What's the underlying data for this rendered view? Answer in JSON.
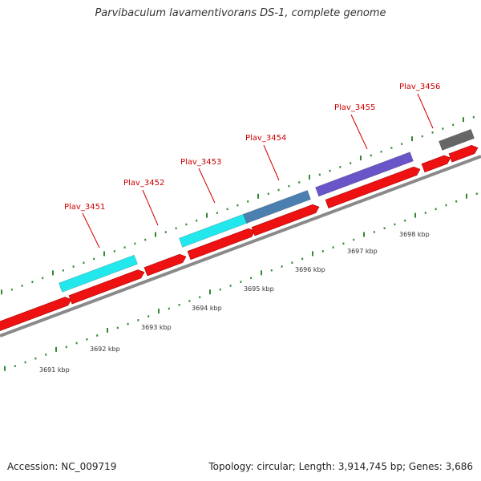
{
  "title": "Parvibaculum lavamentivorans DS-1, complete genome",
  "footer": {
    "accession": "Accession: NC_009719",
    "summary": "Topology: circular; Length: 3,914,745 bp; Genes: 3,686"
  },
  "colors": {
    "cds": "#ee1111",
    "backbone": "#888888",
    "tick": "#338833",
    "label": "#cc0000"
  },
  "kbp_labels": [
    "3691 kbp",
    "3692 kbp",
    "3693 kbp",
    "3694 kbp",
    "3695 kbp",
    "3696 kbp",
    "3697 kbp",
    "3698 kbp"
  ],
  "gene_labels": [
    "Plav_3451",
    "Plav_3452",
    "Plav_3453",
    "Plav_3454",
    "Plav_3455",
    "Plav_3456"
  ],
  "feature_colors": [
    "#22e8ee",
    "#22e8ee",
    "#4a7fb0",
    "#6a55c8",
    "#666666"
  ]
}
